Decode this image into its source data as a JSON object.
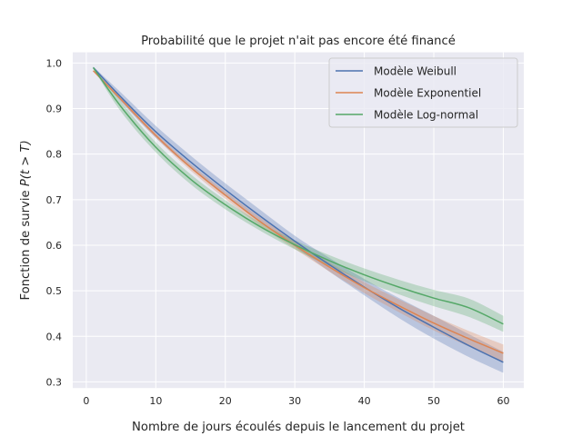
{
  "chart_data": {
    "type": "line",
    "title": "Probabilité que le projet n'ait pas encore été financé",
    "xlabel": "Nombre de jours écoulés depuis le lancement du projet",
    "ylabel": "Fonction de survie ",
    "ylabel_math": "P(t > T)",
    "xlim": [
      -1.95,
      62.95
    ],
    "ylim": [
      0.2865,
      1.0235
    ],
    "xticks": [
      0,
      10,
      20,
      30,
      40,
      50,
      60
    ],
    "yticks": [
      0.3,
      0.4,
      0.5,
      0.6,
      0.7,
      0.8,
      0.9,
      1.0
    ],
    "ytick_labels": [
      "0.3",
      "0.4",
      "0.5",
      "0.6",
      "0.7",
      "0.8",
      "0.9",
      "1.0"
    ],
    "grid": true,
    "legend_position": "top-right",
    "x": [
      1,
      5,
      10,
      15,
      20,
      25,
      30,
      35,
      40,
      45,
      50,
      55,
      60
    ],
    "series": [
      {
        "name": "Modèle Weibull",
        "color": "#4c72b0",
        "values": [
          0.99,
          0.925,
          0.849,
          0.783,
          0.722,
          0.664,
          0.609,
          0.557,
          0.508,
          0.462,
          0.42,
          0.38,
          0.343
        ],
        "lower": [
          0.988,
          0.915,
          0.836,
          0.769,
          0.708,
          0.65,
          0.597,
          0.542,
          0.49,
          0.44,
          0.395,
          0.355,
          0.32
        ],
        "upper": [
          0.992,
          0.935,
          0.862,
          0.797,
          0.736,
          0.678,
          0.621,
          0.572,
          0.526,
          0.484,
          0.445,
          0.405,
          0.366
        ]
      },
      {
        "name": "Modèle Exponentiel",
        "color": "#dd8452",
        "values": [
          0.983,
          0.92,
          0.841,
          0.771,
          0.71,
          0.652,
          0.6,
          0.552,
          0.507,
          0.467,
          0.429,
          0.395,
          0.363
        ],
        "lower": [
          0.982,
          0.916,
          0.836,
          0.764,
          0.702,
          0.643,
          0.592,
          0.542,
          0.495,
          0.453,
          0.413,
          0.378,
          0.344
        ],
        "upper": [
          0.984,
          0.924,
          0.846,
          0.778,
          0.718,
          0.661,
          0.608,
          0.562,
          0.519,
          0.481,
          0.445,
          0.412,
          0.382
        ]
      },
      {
        "name": "Modèle Log-normal",
        "color": "#55a868",
        "values": [
          0.99,
          0.904,
          0.815,
          0.745,
          0.689,
          0.641,
          0.601,
          0.566,
          0.535,
          0.508,
          0.484,
          0.463,
          0.427
        ],
        "lower": [
          0.988,
          0.893,
          0.804,
          0.734,
          0.679,
          0.632,
          0.591,
          0.554,
          0.521,
          0.492,
          0.466,
          0.443,
          0.41
        ],
        "upper": [
          0.992,
          0.915,
          0.826,
          0.756,
          0.699,
          0.65,
          0.611,
          0.578,
          0.549,
          0.524,
          0.502,
          0.483,
          0.445
        ]
      }
    ]
  }
}
